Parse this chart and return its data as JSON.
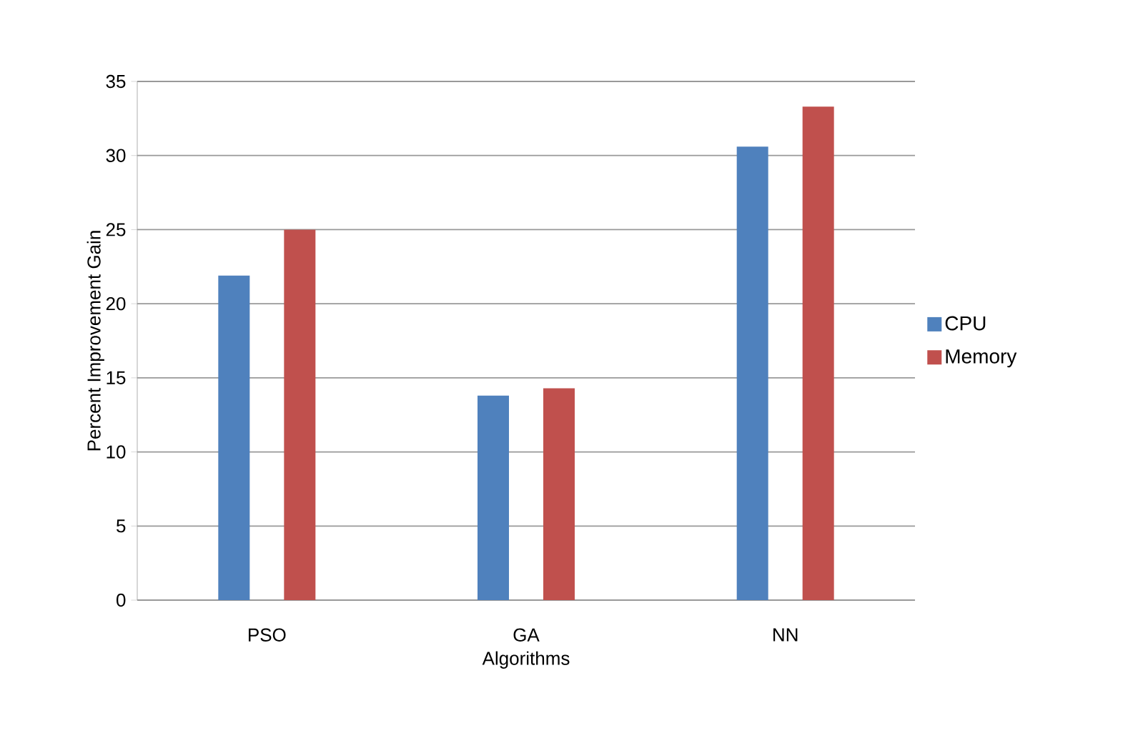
{
  "chart_data": {
    "type": "bar",
    "xlabel": "Algorithms",
    "ylabel": "Percent Improvement Gain",
    "categories": [
      "PSO",
      "GA",
      "NN"
    ],
    "series": [
      {
        "name": "CPU",
        "color": "#4f81bd",
        "values": [
          21.9,
          13.8,
          30.6
        ]
      },
      {
        "name": "Memory",
        "color": "#c0504d",
        "values": [
          25,
          14.3,
          33.3
        ]
      }
    ],
    "ylim": [
      0,
      35
    ],
    "yticks": [
      0,
      5,
      10,
      15,
      20,
      25,
      30,
      35
    ],
    "grid": "y",
    "legend": "right"
  }
}
